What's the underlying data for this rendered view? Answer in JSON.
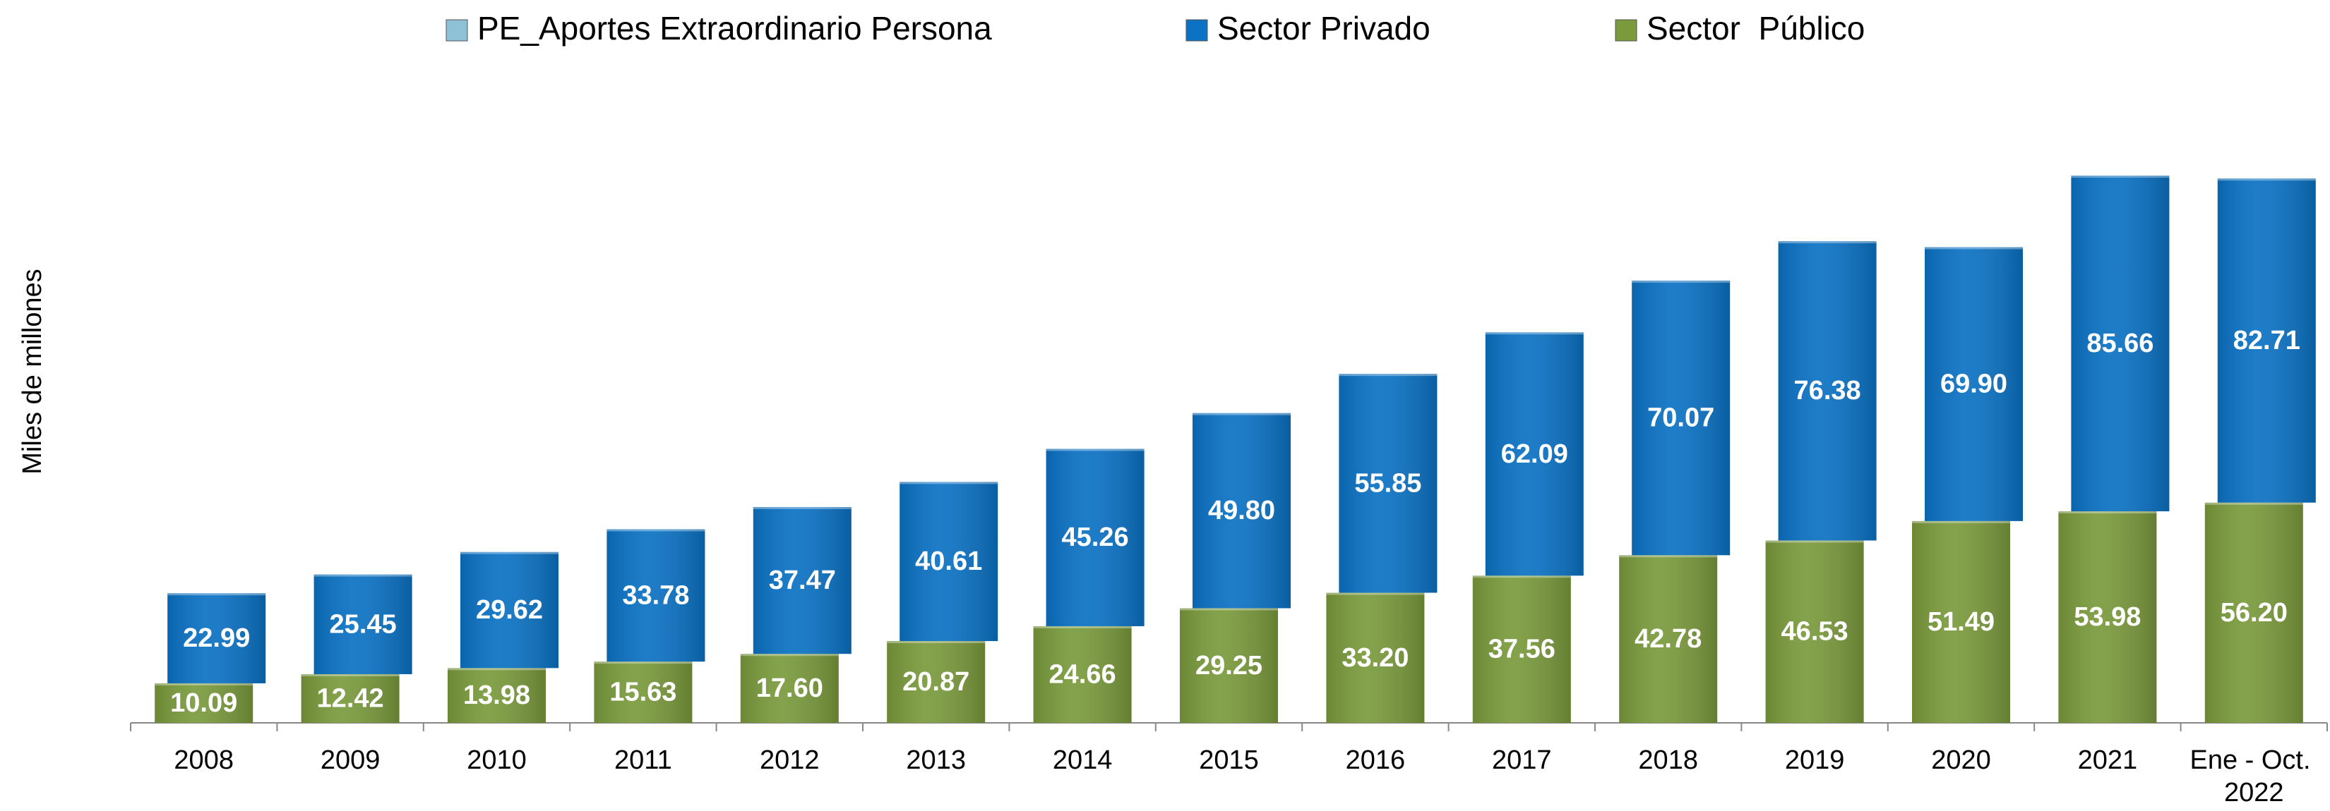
{
  "chart_data": {
    "type": "stacked_bar",
    "y_label": "Miles de millones",
    "categories": [
      "2008",
      "2009",
      "2010",
      "2011",
      "2012",
      "2013",
      "2014",
      "2015",
      "2016",
      "2017",
      "2018",
      "2019",
      "2020",
      "2021",
      "Ene - Oct. 2022"
    ],
    "series": [
      {
        "name": "PE_Aportes Extraordinario Persona",
        "color": "#8ec1d6",
        "values": [
          0,
          0,
          0,
          0,
          0,
          0,
          0,
          0,
          0,
          0,
          0,
          0,
          0,
          0,
          0
        ]
      },
      {
        "name": "Sector Privado",
        "color": "#0b72c4",
        "values": [
          22.99,
          25.45,
          29.62,
          33.78,
          37.47,
          40.61,
          45.26,
          49.8,
          55.85,
          62.09,
          70.07,
          76.38,
          69.9,
          85.66,
          82.71
        ],
        "value_labels": [
          "22.99",
          "25.45",
          "29.62",
          "33.78",
          "37.47",
          "40.61",
          "45.26",
          "49.80",
          "55.85",
          "62.09",
          "70.07",
          "76.38",
          "69.90",
          "85.66",
          "82.71"
        ]
      },
      {
        "name": "Sector  Público",
        "color": "#7a9a3c",
        "values": [
          10.09,
          12.42,
          13.98,
          15.63,
          17.6,
          20.87,
          24.66,
          29.25,
          33.2,
          37.56,
          42.78,
          46.53,
          51.49,
          53.98,
          56.2
        ],
        "value_labels": [
          "10.09",
          "12.42",
          "13.98",
          "15.63",
          "17.60",
          "20.87",
          "24.66",
          "29.25",
          "33.20",
          "37.56",
          "42.78",
          "46.53",
          "51.49",
          "53.98",
          "56.20"
        ]
      }
    ],
    "stack_order": [
      2,
      1,
      0
    ],
    "ylim": [
      0,
      140
    ]
  }
}
